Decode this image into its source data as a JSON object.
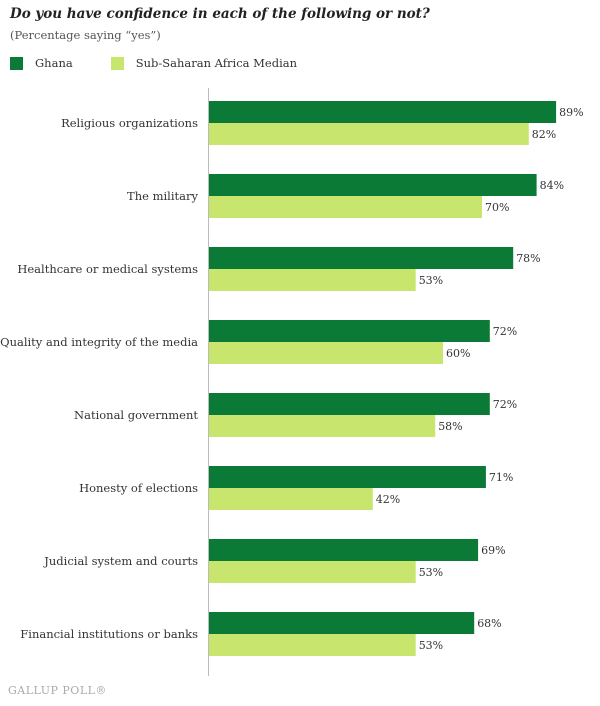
{
  "header": {
    "title": "Do you have confidence in each of the following or not?",
    "subtitle": "(Percentage saying “yes”)"
  },
  "colors": {
    "ghana": "#0b7a36",
    "median": "#c8e66e",
    "axis": "#bbbbbb",
    "text": "#333333"
  },
  "chart_data": {
    "type": "bar",
    "orientation": "horizontal",
    "title": "Do you have confidence in each of the following or not?",
    "subtitle": "(Percentage saying “yes”)",
    "legend_position": "top-left",
    "grid": false,
    "xlim": [
      0,
      100
    ],
    "value_suffix": "%",
    "categories": [
      "Religious organizations",
      "The military",
      "Healthcare or medical systems",
      "Quality and integrity of the media",
      "National government",
      "Honesty of elections",
      "Judicial system and courts",
      "Financial institutions or banks"
    ],
    "series": [
      {
        "name": "Ghana",
        "values": [
          89,
          84,
          78,
          72,
          72,
          71,
          69,
          68
        ]
      },
      {
        "name": "Sub-Saharan Africa Median",
        "values": [
          82,
          70,
          53,
          60,
          58,
          42,
          53,
          53
        ]
      }
    ]
  },
  "footer": {
    "source": "GALLUP POLL®"
  }
}
